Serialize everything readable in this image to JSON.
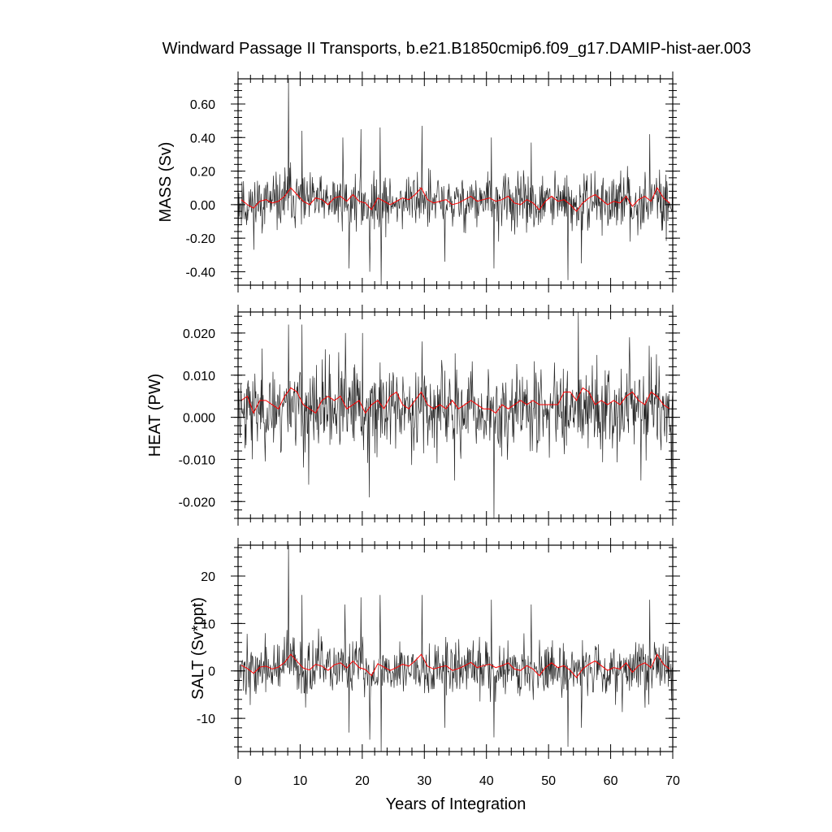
{
  "title": "Windward Passage II Transports, b.e21.B1850cmip6.f09_g17.DAMIP-hist-aer.003",
  "xlabel": "Years of Integration",
  "colors": {
    "raw": "#000000",
    "smoothed": "#ff0000",
    "frame": "#000000"
  },
  "chart_data": [
    {
      "type": "line",
      "ylabel": "MASS (Sv)",
      "xlim": [
        0,
        70
      ],
      "ylim": [
        -0.48,
        0.75
      ],
      "xticks": [
        0,
        10,
        20,
        30,
        40,
        50,
        60,
        70
      ],
      "yticks": [
        -0.4,
        -0.2,
        0.0,
        0.2,
        0.4,
        0.6
      ],
      "ytick_labels": [
        "-0.40",
        "-0.20",
        "0.00",
        "0.20",
        "0.40",
        "0.60"
      ],
      "series": [
        {
          "kind": "monthly",
          "std": 0.085,
          "spikes": [
            [
              8.1,
              0.75
            ],
            [
              10.3,
              0.44
            ],
            [
              16.9,
              0.4
            ],
            [
              19.8,
              0.45
            ],
            [
              22.9,
              0.46
            ],
            [
              29.6,
              0.47
            ],
            [
              40.8,
              0.4
            ],
            [
              47.2,
              0.37
            ],
            [
              66.3,
              0.42
            ],
            [
              17.9,
              -0.38
            ],
            [
              21.2,
              -0.4
            ],
            [
              23.0,
              -0.48
            ],
            [
              33.3,
              -0.34
            ],
            [
              41.2,
              -0.38
            ],
            [
              53.1,
              -0.45
            ],
            [
              55.3,
              -0.35
            ]
          ],
          "seed": 11
        },
        {
          "kind": "annual-mean",
          "values": [
            0.03,
            0.0,
            -0.02,
            0.02,
            0.03,
            0.01,
            0.02,
            0.05,
            0.1,
            0.06,
            0.02,
            0.0,
            0.04,
            0.03,
            0.0,
            0.04,
            0.05,
            0.02,
            0.06,
            0.02,
            0.01,
            -0.03,
            0.04,
            0.02,
            0.0,
            0.02,
            0.04,
            0.03,
            0.06,
            0.1,
            0.03,
            0.01,
            0.02,
            0.03,
            0.0,
            0.01,
            0.03,
            0.05,
            0.02,
            0.03,
            0.04,
            0.02,
            0.03,
            0.05,
            0.01,
            0.0,
            0.03,
            0.01,
            -0.03,
            0.02,
            0.05,
            0.02,
            0.03,
            0.0,
            -0.04,
            0.01,
            0.04,
            0.06,
            0.03,
            0.0,
            0.02,
            0.01,
            0.05,
            -0.01,
            0.03,
            0.05,
            0.02,
            0.1,
            0.04,
            0.01
          ]
        }
      ]
    },
    {
      "type": "line",
      "ylabel": "HEAT (PW)",
      "xlim": [
        0,
        70
      ],
      "ylim": [
        -0.024,
        0.025
      ],
      "xticks": [
        0,
        10,
        20,
        30,
        40,
        50,
        60,
        70
      ],
      "yticks": [
        -0.02,
        -0.01,
        0.0,
        0.01,
        0.02
      ],
      "ytick_labels": [
        "-0.020",
        "-0.010",
        "0.000",
        "0.010",
        "0.020"
      ],
      "series": [
        {
          "kind": "monthly",
          "std": 0.0052,
          "spikes": [
            [
              8.1,
              0.022
            ],
            [
              10.3,
              0.022
            ],
            [
              17.3,
              0.02
            ],
            [
              20.0,
              0.02
            ],
            [
              29.6,
              0.018
            ],
            [
              54.8,
              0.025
            ],
            [
              63.0,
              0.019
            ],
            [
              11.4,
              -0.016
            ],
            [
              21.1,
              -0.019
            ],
            [
              41.2,
              -0.024
            ],
            [
              34.9,
              -0.015
            ],
            [
              69.8,
              -0.017
            ],
            [
              64.9,
              -0.015
            ]
          ],
          "seed": 23
        },
        {
          "kind": "annual-mean",
          "values": [
            0.004,
            0.005,
            0.001,
            0.004,
            0.004,
            0.003,
            0.002,
            0.005,
            0.007,
            0.006,
            0.003,
            0.002,
            0.001,
            0.004,
            0.005,
            0.004,
            0.005,
            0.002,
            0.003,
            0.004,
            0.001,
            0.003,
            0.004,
            0.002,
            0.005,
            0.006,
            0.003,
            0.002,
            0.004,
            0.006,
            0.003,
            0.002,
            0.003,
            0.002,
            0.004,
            0.002,
            0.003,
            0.004,
            0.003,
            0.002,
            0.002,
            0.001,
            0.003,
            0.002,
            0.003,
            0.004,
            0.003,
            0.004,
            0.003,
            0.003,
            0.003,
            0.003,
            0.006,
            0.006,
            0.004,
            0.007,
            0.006,
            0.003,
            0.004,
            0.003,
            0.004,
            0.003,
            0.005,
            0.006,
            0.004,
            0.003,
            0.006,
            0.005,
            0.003,
            0.002
          ]
        }
      ]
    },
    {
      "type": "line",
      "ylabel": "SALT (Sv*ppt)",
      "xlim": [
        0,
        70
      ],
      "ylim": [
        -17,
        26.5
      ],
      "xticks": [
        0,
        10,
        20,
        30,
        40,
        50,
        60,
        70
      ],
      "yticks": [
        -10,
        0,
        10,
        20
      ],
      "ytick_labels": [
        "-10",
        "0",
        "10",
        "20"
      ],
      "series": [
        {
          "kind": "monthly",
          "std": 3.0,
          "spikes": [
            [
              8.1,
              26.5
            ],
            [
              10.3,
              16
            ],
            [
              17.2,
              14
            ],
            [
              19.8,
              15.5
            ],
            [
              22.9,
              16
            ],
            [
              29.6,
              16
            ],
            [
              40.8,
              15
            ],
            [
              47.2,
              14
            ],
            [
              66.3,
              15
            ],
            [
              17.9,
              -13
            ],
            [
              21.2,
              -14.5
            ],
            [
              23.0,
              -17
            ],
            [
              33.3,
              -12
            ],
            [
              41.2,
              -14
            ],
            [
              53.1,
              -16
            ],
            [
              55.3,
              -12
            ]
          ],
          "seed": 37
        },
        {
          "kind": "annual-mean",
          "values": [
            1.2,
            0.5,
            -0.5,
            0.8,
            1.0,
            0.4,
            0.8,
            1.8,
            3.5,
            2.0,
            0.6,
            0.2,
            1.4,
            1.0,
            0.1,
            1.3,
            1.7,
            0.6,
            2.1,
            0.7,
            0.3,
            -1.0,
            1.5,
            0.8,
            0.1,
            0.7,
            1.4,
            1.0,
            2.1,
            3.5,
            1.0,
            0.4,
            0.8,
            1.1,
            0.1,
            0.5,
            1.1,
            1.8,
            0.7,
            1.1,
            1.4,
            0.7,
            1.1,
            1.7,
            0.4,
            0.1,
            1.1,
            0.4,
            -1.0,
            0.7,
            1.7,
            0.7,
            1.1,
            0.1,
            -1.4,
            0.4,
            1.4,
            2.1,
            1.1,
            0.1,
            0.7,
            0.4,
            1.7,
            -0.3,
            1.1,
            1.7,
            0.7,
            3.5,
            1.4,
            0.4
          ]
        }
      ]
    }
  ]
}
